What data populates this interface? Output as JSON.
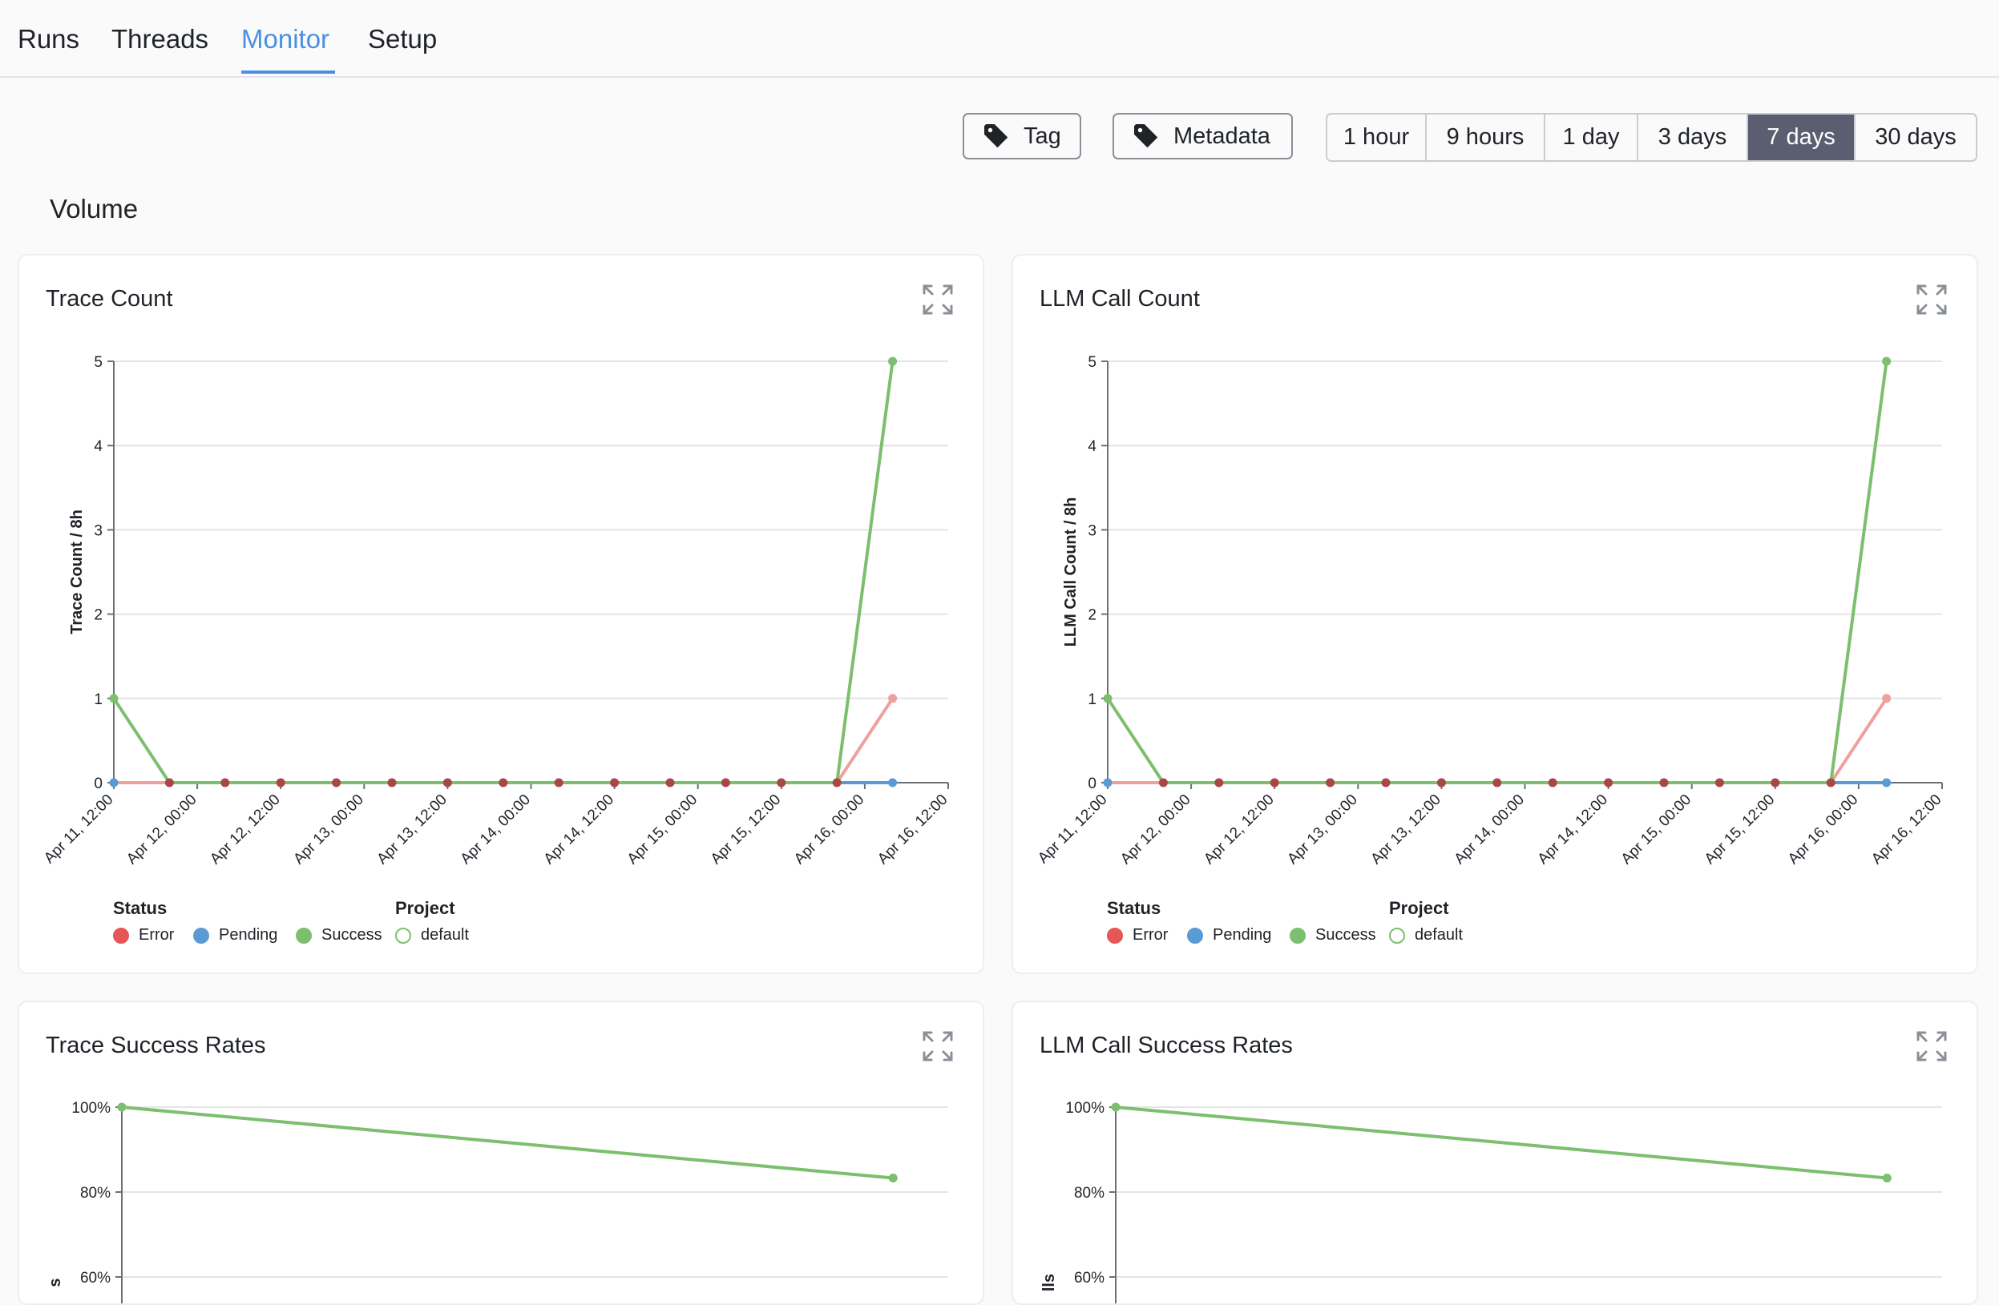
{
  "nav": {
    "tabs": [
      {
        "label": "Runs",
        "active": false
      },
      {
        "label": "Threads",
        "active": false
      },
      {
        "label": "Monitor",
        "active": true
      },
      {
        "label": "Setup",
        "active": false
      }
    ]
  },
  "filters": {
    "tag_label": "Tag",
    "metadata_label": "Metadata",
    "ranges": [
      "1 hour",
      "9 hours",
      "1 day",
      "3 days",
      "7 days",
      "30 days"
    ],
    "selected_range": "7 days",
    "icons": {
      "tag": "tag-icon",
      "metadata": "tag-icon",
      "expand": "expand-icon"
    }
  },
  "section": {
    "title": "Volume"
  },
  "colors": {
    "error": "#e45756",
    "error_line": "#f0a09b",
    "pending": "#5b9bd5",
    "success": "#7cbf6e",
    "dark_dot": "#a94646",
    "accent": "#4a90e2",
    "selected_range_bg": "#5b5e70"
  },
  "legend": {
    "status_title": "Status",
    "project_title": "Project",
    "status_items": [
      "Error",
      "Pending",
      "Success"
    ],
    "project_items": [
      "default"
    ]
  },
  "cards": {
    "trace_count": {
      "title": "Trace Count"
    },
    "llm_call_count": {
      "title": "LLM Call Count"
    },
    "trace_success": {
      "title": "Trace Success Rates"
    },
    "llm_success": {
      "title": "LLM Call Success Rates"
    }
  },
  "chart_data": [
    {
      "type": "line",
      "title": "Trace Count",
      "xlabel": "",
      "ylabel": "Trace Count / 8h",
      "ylim": [
        0,
        5
      ],
      "yticks": [
        "0",
        "1",
        "2",
        "3",
        "4",
        "5"
      ],
      "x_tick_labels": [
        "Apr 11, 12:00",
        "Apr 12, 00:00",
        "Apr 12, 12:00",
        "Apr 13, 00:00",
        "Apr 13, 12:00",
        "Apr 14, 00:00",
        "Apr 14, 12:00",
        "Apr 15, 00:00",
        "Apr 15, 12:00",
        "Apr 16, 00:00",
        "Apr 16, 12:00"
      ],
      "x": [
        "Apr 11, 12:00",
        "Apr 11, 20:00",
        "Apr 12, 04:00",
        "Apr 12, 12:00",
        "Apr 12, 20:00",
        "Apr 13, 04:00",
        "Apr 13, 12:00",
        "Apr 13, 20:00",
        "Apr 14, 04:00",
        "Apr 14, 12:00",
        "Apr 14, 20:00",
        "Apr 15, 04:00",
        "Apr 15, 12:00",
        "Apr 15, 20:00",
        "Apr 16, 04:00"
      ],
      "series": [
        {
          "name": "Error",
          "values": [
            0,
            0,
            0,
            0,
            0,
            0,
            0,
            0,
            0,
            0,
            0,
            0,
            0,
            0,
            1
          ]
        },
        {
          "name": "Pending",
          "values": [
            0,
            0,
            0,
            0,
            0,
            0,
            0,
            0,
            0,
            0,
            0,
            0,
            0,
            0,
            0
          ]
        },
        {
          "name": "Success",
          "values": [
            1,
            0,
            0,
            0,
            0,
            0,
            0,
            0,
            0,
            0,
            0,
            0,
            0,
            0,
            5
          ]
        }
      ],
      "grid": true,
      "legend": "bottom-left"
    },
    {
      "type": "line",
      "title": "LLM Call Count",
      "xlabel": "",
      "ylabel": "LLM Call Count / 8h",
      "ylim": [
        0,
        5
      ],
      "yticks": [
        "0",
        "1",
        "2",
        "3",
        "4",
        "5"
      ],
      "x_tick_labels": [
        "Apr 11, 12:00",
        "Apr 12, 00:00",
        "Apr 12, 12:00",
        "Apr 13, 00:00",
        "Apr 13, 12:00",
        "Apr 14, 00:00",
        "Apr 14, 12:00",
        "Apr 15, 00:00",
        "Apr 15, 12:00",
        "Apr 16, 00:00",
        "Apr 16, 12:00"
      ],
      "x": [
        "Apr 11, 12:00",
        "Apr 11, 20:00",
        "Apr 12, 04:00",
        "Apr 12, 12:00",
        "Apr 12, 20:00",
        "Apr 13, 04:00",
        "Apr 13, 12:00",
        "Apr 13, 20:00",
        "Apr 14, 04:00",
        "Apr 14, 12:00",
        "Apr 14, 20:00",
        "Apr 15, 04:00",
        "Apr 15, 12:00",
        "Apr 15, 20:00",
        "Apr 16, 04:00"
      ],
      "series": [
        {
          "name": "Error",
          "values": [
            0,
            0,
            0,
            0,
            0,
            0,
            0,
            0,
            0,
            0,
            0,
            0,
            0,
            0,
            1
          ]
        },
        {
          "name": "Pending",
          "values": [
            0,
            0,
            0,
            0,
            0,
            0,
            0,
            0,
            0,
            0,
            0,
            0,
            0,
            0,
            0
          ]
        },
        {
          "name": "Success",
          "values": [
            1,
            0,
            0,
            0,
            0,
            0,
            0,
            0,
            0,
            0,
            0,
            0,
            0,
            0,
            5
          ]
        }
      ],
      "grid": true,
      "legend": "bottom-left"
    },
    {
      "type": "line",
      "title": "Trace Success Rates",
      "ylabel": "s",
      "ylim": [
        60,
        100
      ],
      "yticks": [
        "100%",
        "80%",
        "60%"
      ],
      "x": [
        "Apr 11, 12:00",
        "Apr 16, 04:00"
      ],
      "series": [
        {
          "name": "Success",
          "values": [
            100,
            83.3
          ]
        }
      ],
      "grid": true
    },
    {
      "type": "line",
      "title": "LLM Call Success Rates",
      "ylabel": "lls",
      "ylim": [
        60,
        100
      ],
      "yticks": [
        "100%",
        "80%",
        "60%"
      ],
      "x": [
        "Apr 11, 12:00",
        "Apr 16, 04:00"
      ],
      "series": [
        {
          "name": "Success",
          "values": [
            100,
            83.3
          ]
        }
      ],
      "grid": true
    }
  ]
}
